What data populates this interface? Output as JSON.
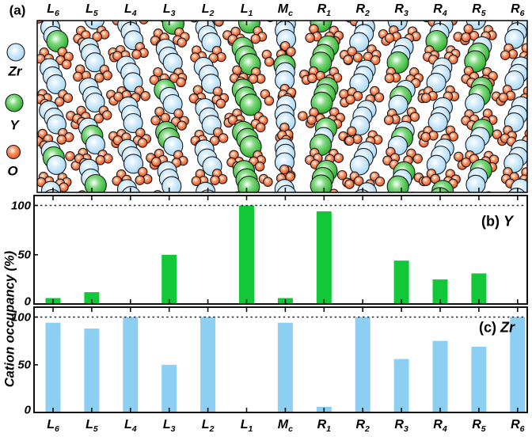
{
  "panel_a": {
    "label": "(a)",
    "legend": [
      {
        "name": "Zr",
        "color": "#A8D8F8"
      },
      {
        "name": "Y",
        "color": "#2DB22D"
      },
      {
        "name": "O",
        "color": "#E8501E"
      }
    ]
  },
  "columns": [
    {
      "base": "L",
      "sub": "6"
    },
    {
      "base": "L",
      "sub": "5"
    },
    {
      "base": "L",
      "sub": "4"
    },
    {
      "base": "L",
      "sub": "3"
    },
    {
      "base": "L",
      "sub": "2"
    },
    {
      "base": "L",
      "sub": "1"
    },
    {
      "base": "M",
      "sub": "c"
    },
    {
      "base": "R",
      "sub": "1"
    },
    {
      "base": "R",
      "sub": "2"
    },
    {
      "base": "R",
      "sub": "3"
    },
    {
      "base": "R",
      "sub": "4"
    },
    {
      "base": "R",
      "sub": "5"
    },
    {
      "base": "R",
      "sub": "6"
    }
  ],
  "axis": {
    "ylabel": "Cation occupancy (%)",
    "yticks": [
      0,
      50,
      100
    ],
    "ref_line": 100
  },
  "chart_data": [
    {
      "type": "bar",
      "panel": "b",
      "title_prefix": "(b)",
      "element": "Y",
      "categories": [
        "L6",
        "L5",
        "L4",
        "L3",
        "L2",
        "L1",
        "Mc",
        "R1",
        "R2",
        "R3",
        "R4",
        "R5",
        "R6"
      ],
      "values": [
        6,
        12,
        0,
        50,
        0,
        100,
        6,
        94,
        0,
        44,
        25,
        31,
        0
      ],
      "xlabel": "",
      "ylabel": "Cation occupancy (%)",
      "ylim": [
        0,
        110
      ],
      "yticks": [
        0,
        50,
        100
      ],
      "ref_line": 100,
      "bar_color": "#12C838",
      "grid": false,
      "legend_position": "none"
    },
    {
      "type": "bar",
      "panel": "c",
      "title_prefix": "(c)",
      "element": "Zr",
      "categories": [
        "L6",
        "L5",
        "L4",
        "L3",
        "L2",
        "L1",
        "Mc",
        "R1",
        "R2",
        "R3",
        "R4",
        "R5",
        "R6"
      ],
      "values": [
        94,
        88,
        100,
        50,
        100,
        0,
        94,
        6,
        100,
        56,
        75,
        69,
        100
      ],
      "xlabel": "",
      "ylabel": "Cation occupancy (%)",
      "ylim": [
        0,
        110
      ],
      "yticks": [
        0,
        50,
        100
      ],
      "ref_line": 100,
      "bar_color": "#8CCFF3",
      "grid": false,
      "legend_position": "none"
    }
  ],
  "colors": {
    "axis": "#111111",
    "outline": "#1a1a1a",
    "zr_body": "#A8D8F8",
    "zr_light": "#D6EDFC",
    "zr_rim": "#5E9BCC",
    "y_body": "#2DB22D",
    "y_light": "#7FD87F",
    "y_rim": "#0E7E0E",
    "o_body": "#E8501E",
    "o_light": "#F89A6C",
    "o_rim": "#B23208"
  }
}
